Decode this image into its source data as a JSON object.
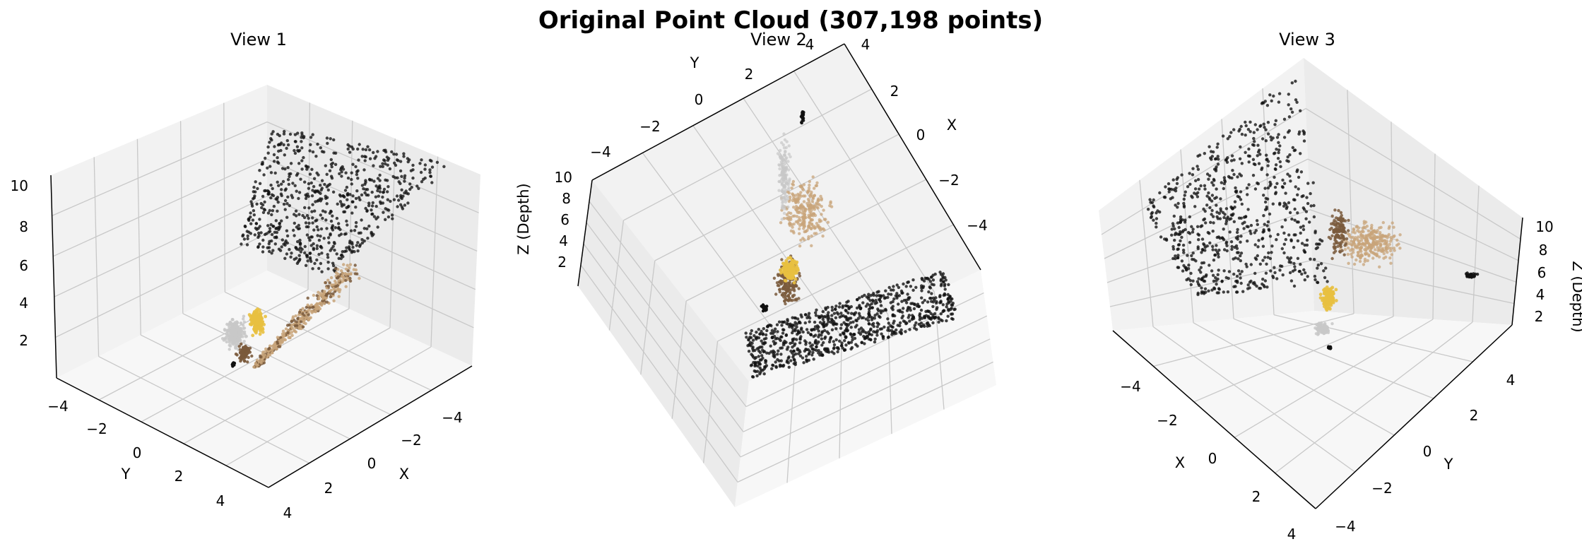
{
  "chart_data": {
    "type": "scatter3d",
    "title": "Original Point Cloud (307,198 points)",
    "total_points": 307198,
    "colors": {
      "background": "#1c1c1c",
      "light_gray": "#c8c8c8",
      "tan": "#c8a47a",
      "brown": "#7a5a3c",
      "yellow": "#e8c040",
      "dark": "#111111"
    },
    "views": [
      {
        "title": "View 1",
        "x_label": "X",
        "y_label": "Y",
        "z_label": "",
        "x_ticks": [
          "−4",
          "−2",
          "0",
          "2",
          "4"
        ],
        "y_ticks": [
          "−4",
          "−2",
          "0",
          "2",
          "4"
        ],
        "z_ticks": [
          "10",
          "8",
          "6",
          "4",
          "2"
        ],
        "xlim": [
          -5,
          5
        ],
        "ylim": [
          -5,
          5
        ],
        "zlim": [
          0,
          10
        ]
      },
      {
        "title": "View 2",
        "x_label": "X",
        "y_label": "Y",
        "z_label": "Z (Depth)",
        "x_ticks": [
          "4",
          "2",
          "0",
          "−2",
          "−4"
        ],
        "y_ticks": [
          "−4",
          "−2",
          "0",
          "2",
          "4"
        ],
        "z_ticks": [
          "10",
          "8",
          "6",
          "4",
          "2"
        ],
        "xlim": [
          -5,
          5
        ],
        "ylim": [
          -5,
          5
        ],
        "zlim": [
          0,
          10
        ]
      },
      {
        "title": "View 3",
        "x_label": "X",
        "y_label": "Y",
        "z_label": "Z (Depth)",
        "x_ticks": [
          "−4",
          "−2",
          "0",
          "2",
          "4"
        ],
        "y_ticks": [
          "4",
          "2",
          "0",
          "−2",
          "−4"
        ],
        "z_ticks": [
          "10",
          "8",
          "6",
          "4",
          "2"
        ],
        "xlim": [
          -5,
          5
        ],
        "ylim": [
          -5,
          5
        ],
        "zlim": [
          0,
          10
        ]
      }
    ]
  }
}
